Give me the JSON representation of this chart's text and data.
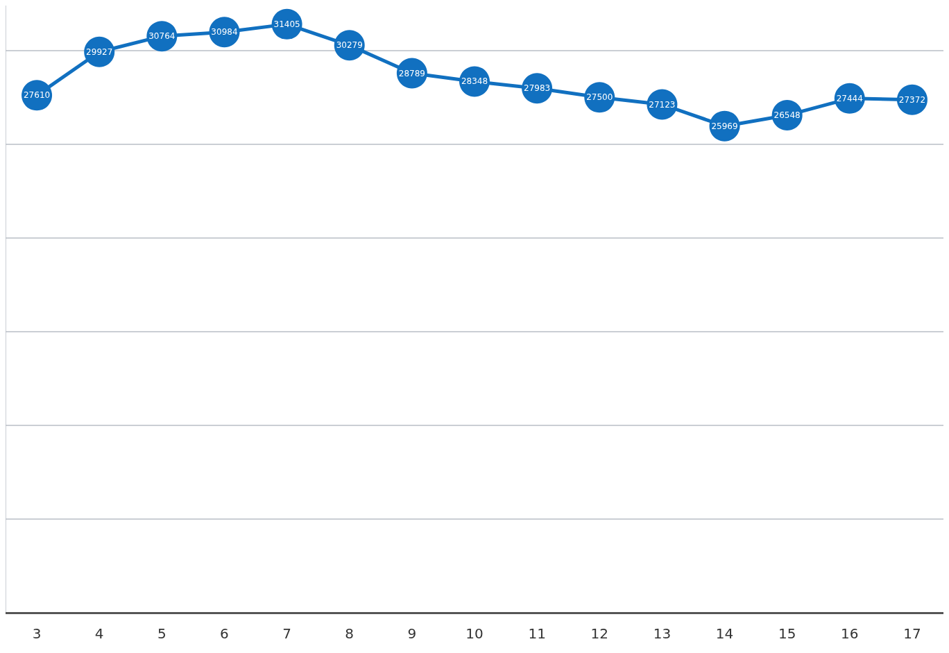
{
  "chart_data": {
    "type": "line",
    "categories": [
      "3",
      "4",
      "5",
      "6",
      "7",
      "8",
      "9",
      "10",
      "11",
      "12",
      "13",
      "14",
      "15",
      "16",
      "17"
    ],
    "series": [
      {
        "color": "#1170c0",
        "values": [
          27610,
          29927,
          30764,
          30984,
          31405,
          30279,
          28789,
          28348,
          27983,
          27500,
          27123,
          25969,
          26548,
          27444,
          27372
        ]
      }
    ],
    "data_labels": true,
    "ylim": [
      0,
      32400
    ],
    "yticks": [
      {
        "value": 0,
        "label": null
      },
      {
        "value": 5000,
        "label": null
      },
      {
        "value": 10000,
        "label": null
      },
      {
        "value": 15000,
        "label": null
      },
      {
        "value": 20000,
        "label": null
      },
      {
        "value": 25000,
        "label": null
      },
      {
        "value": 30000,
        "label": null
      }
    ],
    "tick_labels": "x",
    "grid": "y",
    "marker": "circle",
    "line_style": "solid"
  }
}
